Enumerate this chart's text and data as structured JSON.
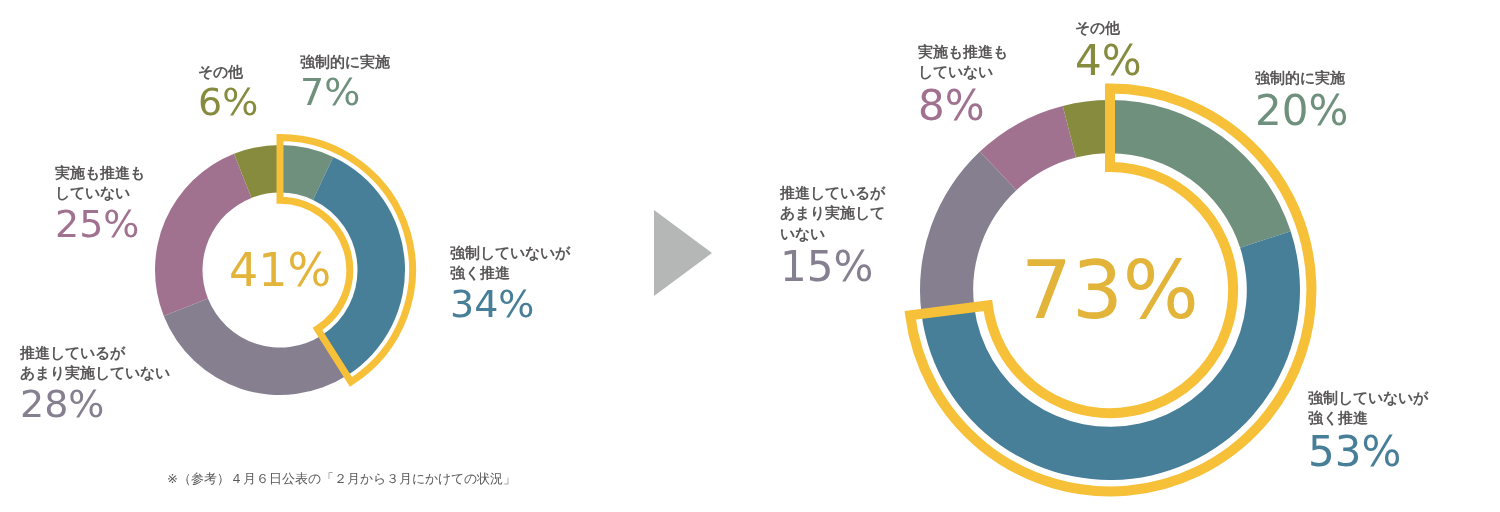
{
  "chart_data": [
    {
      "type": "donut",
      "categories": [
        "強制的に実施",
        "強制していないが強く推進",
        "推進しているがあまり実施していない",
        "実施も推進もしていない",
        "その他"
      ],
      "values": [
        7,
        34,
        28,
        25,
        6
      ],
      "value_labels": [
        "7%",
        "34%",
        "28%",
        "25%",
        "6%"
      ],
      "colors": [
        "#6f907c",
        "#477e98",
        "#857f8f",
        "#a07290",
        "#878b3e"
      ],
      "legend": false,
      "annotations": [
        "41%",
        "※（参考）４月６日公表の「２月から３月にかけての状況」"
      ]
    },
    {
      "type": "donut",
      "categories": [
        "強制的に実施",
        "強制していないが強く推進",
        "推進しているがあまり実施していない",
        "実施も推進もしていない",
        "その他"
      ],
      "values": [
        20,
        53,
        15,
        8,
        4
      ],
      "value_labels": [
        "20%",
        "53%",
        "15%",
        "8%",
        "4%"
      ],
      "colors": [
        "#6f907c",
        "#477e98",
        "#857f8f",
        "#a07290",
        "#878b3e"
      ],
      "legend": false,
      "annotations": [
        "73%"
      ]
    }
  ]
}
